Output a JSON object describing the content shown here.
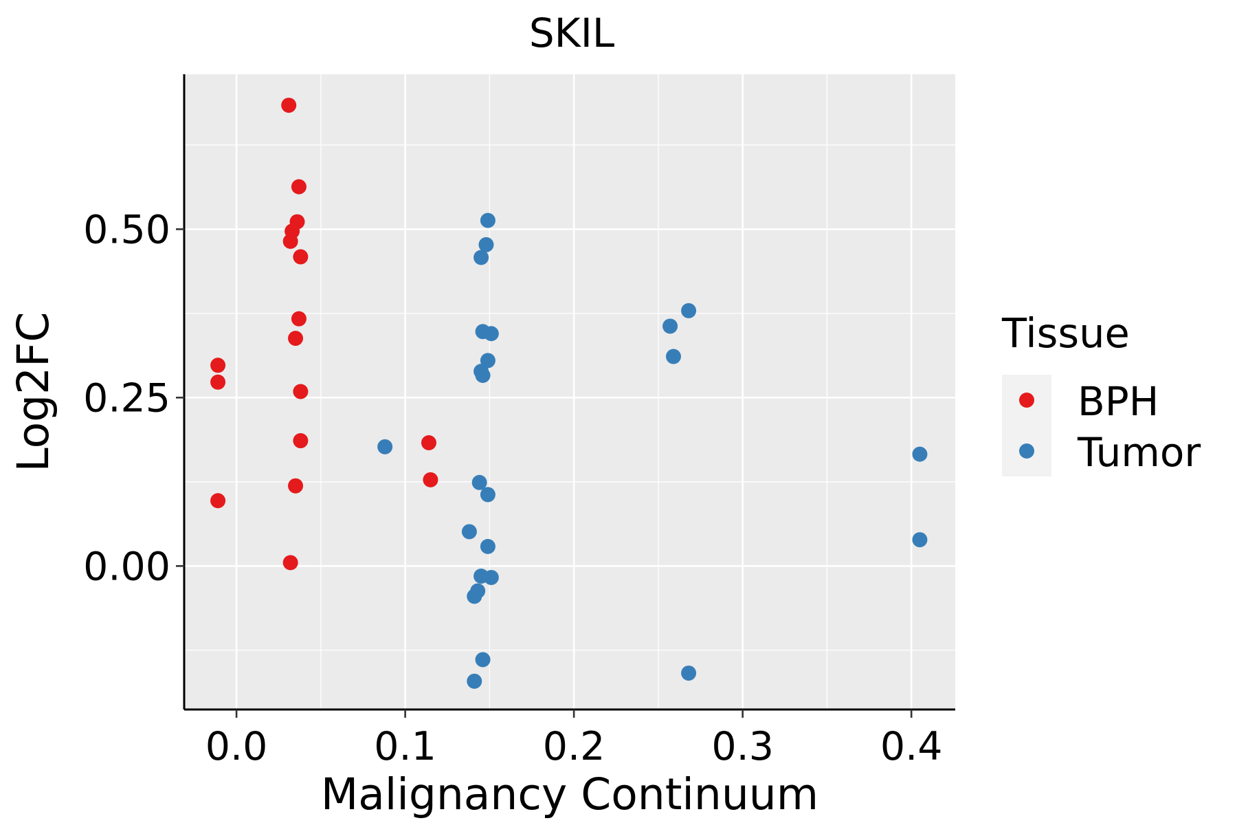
{
  "chart_data": {
    "type": "scatter",
    "title": "SKIL",
    "xlabel": "Malignancy Continuum",
    "ylabel": "Log2FC",
    "xlim": [
      -0.031,
      0.426
    ],
    "ylim": [
      -0.213,
      0.73
    ],
    "x_ticks": [
      0.0,
      0.1,
      0.2,
      0.3,
      0.4
    ],
    "x_tick_labels": [
      "0.0",
      "0.1",
      "0.2",
      "0.3",
      "0.4"
    ],
    "y_ticks": [
      0.0,
      0.25,
      0.5
    ],
    "y_tick_labels": [
      "0.00",
      "0.25",
      "0.50"
    ],
    "x_minor": [
      0.05,
      0.15,
      0.25,
      0.35
    ],
    "y_minor": [
      -0.125,
      0.125,
      0.375,
      0.625
    ],
    "grid": true,
    "legend": {
      "title": "Tissue",
      "position": "right"
    },
    "series": [
      {
        "name": "BPH",
        "color": "#E41A1C",
        "points": [
          {
            "x": 0.031,
            "y": 0.684
          },
          {
            "x": 0.037,
            "y": 0.563
          },
          {
            "x": 0.036,
            "y": 0.511
          },
          {
            "x": 0.033,
            "y": 0.497
          },
          {
            "x": 0.032,
            "y": 0.482
          },
          {
            "x": 0.038,
            "y": 0.459
          },
          {
            "x": 0.037,
            "y": 0.367
          },
          {
            "x": 0.035,
            "y": 0.338
          },
          {
            "x": -0.011,
            "y": 0.298
          },
          {
            "x": -0.011,
            "y": 0.273
          },
          {
            "x": 0.038,
            "y": 0.259
          },
          {
            "x": 0.038,
            "y": 0.186
          },
          {
            "x": 0.114,
            "y": 0.183
          },
          {
            "x": 0.115,
            "y": 0.128
          },
          {
            "x": 0.035,
            "y": 0.119
          },
          {
            "x": -0.011,
            "y": 0.097
          },
          {
            "x": 0.032,
            "y": 0.005
          }
        ]
      },
      {
        "name": "Tumor",
        "color": "#377EB8",
        "points": [
          {
            "x": 0.149,
            "y": 0.513
          },
          {
            "x": 0.148,
            "y": 0.477
          },
          {
            "x": 0.145,
            "y": 0.458
          },
          {
            "x": 0.268,
            "y": 0.379
          },
          {
            "x": 0.257,
            "y": 0.356
          },
          {
            "x": 0.146,
            "y": 0.348
          },
          {
            "x": 0.151,
            "y": 0.345
          },
          {
            "x": 0.259,
            "y": 0.311
          },
          {
            "x": 0.149,
            "y": 0.305
          },
          {
            "x": 0.145,
            "y": 0.289
          },
          {
            "x": 0.146,
            "y": 0.283
          },
          {
            "x": 0.088,
            "y": 0.177
          },
          {
            "x": 0.405,
            "y": 0.166
          },
          {
            "x": 0.144,
            "y": 0.124
          },
          {
            "x": 0.149,
            "y": 0.106
          },
          {
            "x": 0.138,
            "y": 0.051
          },
          {
            "x": 0.405,
            "y": 0.039
          },
          {
            "x": 0.149,
            "y": 0.029
          },
          {
            "x": 0.145,
            "y": -0.015
          },
          {
            "x": 0.151,
            "y": -0.017
          },
          {
            "x": 0.143,
            "y": -0.037
          },
          {
            "x": 0.141,
            "y": -0.045
          },
          {
            "x": 0.146,
            "y": -0.139
          },
          {
            "x": 0.268,
            "y": -0.159
          },
          {
            "x": 0.141,
            "y": -0.171
          }
        ]
      }
    ]
  }
}
